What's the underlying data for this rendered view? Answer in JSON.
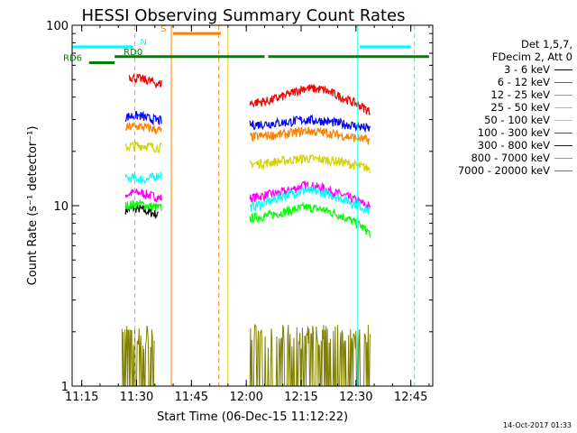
{
  "chart_data": {
    "type": "line",
    "title": "HESSI Observing Summary Count Rates",
    "xlabel": "Start Time (06-Dec-15 11:12:22)",
    "ylabel": "Count Rate (s⁻¹ detector⁻¹)",
    "y_scale": "log",
    "ylim": [
      1,
      100
    ],
    "xlim": [
      "11:12:22",
      "12:51:00"
    ],
    "x_ticks": [
      "11:15",
      "11:30",
      "11:45",
      "12:00",
      "12:15",
      "12:30",
      "12:45"
    ],
    "y_ticks": [
      "1",
      "10",
      "100"
    ],
    "legend_position": "right",
    "legend_header": [
      "Det 1,5,7,",
      "FDecim 2, Att 0"
    ],
    "series": [
      {
        "name": "3 - 6 keV",
        "color": "#000000",
        "segments": [
          {
            "x": [
              "11:27",
              "11:29",
              "11:31",
              "11:33",
              "11:35",
              "11:36"
            ],
            "y": [
              9.5,
              9.7,
              9.6,
              9.3,
              9.0,
              8.8
            ]
          },
          {
            "x": [
              "12:01",
              "12:06",
              "12:11",
              "12:16",
              "12:21",
              "12:26",
              "12:31",
              "12:34"
            ],
            "y": [
              null,
              null,
              null,
              null,
              null,
              null,
              null,
              null
            ]
          }
        ]
      },
      {
        "name": "6 - 12 keV",
        "color": "#ff00ff",
        "segments": [
          {
            "x": [
              "11:27",
              "11:29",
              "11:31",
              "11:33",
              "11:35",
              "11:37"
            ],
            "y": [
              11.5,
              11.8,
              11.8,
              11.5,
              11.2,
              11
            ]
          },
          {
            "x": [
              "12:01",
              "12:06",
              "12:11",
              "12:16",
              "12:21",
              "12:26",
              "12:31",
              "12:34"
            ],
            "y": [
              11,
              11.5,
              12,
              13,
              12.5,
              11.5,
              10.5,
              9.8
            ]
          }
        ]
      },
      {
        "name": "12 - 25 keV",
        "color": "#00ff00",
        "segments": [
          {
            "x": [
              "11:27",
              "11:29",
              "11:31",
              "11:33",
              "11:35",
              "11:37"
            ],
            "y": [
              10,
              10.2,
              10.2,
              10,
              9.8,
              9.7
            ]
          },
          {
            "x": [
              "12:01",
              "12:06",
              "12:11",
              "12:16",
              "12:21",
              "12:26",
              "12:31",
              "12:34"
            ],
            "y": [
              8.5,
              8.8,
              9.3,
              9.8,
              9.5,
              8.8,
              7.8,
              7.0
            ]
          }
        ]
      },
      {
        "name": "25 - 50 keV",
        "color": "#00ffff",
        "segments": [
          {
            "x": [
              "11:27",
              "11:29",
              "11:31",
              "11:33",
              "11:35",
              "11:37"
            ],
            "y": [
              14,
              14.3,
              14,
              14,
              14.5,
              15
            ]
          },
          {
            "x": [
              "12:01",
              "12:06",
              "12:11",
              "12:16",
              "12:21",
              "12:26",
              "12:31",
              "12:34"
            ],
            "y": [
              9.8,
              10.5,
              11.5,
              12.2,
              11.8,
              11,
              10,
              9.3
            ]
          }
        ]
      },
      {
        "name": "50 - 100 keV",
        "color": "#d4d400",
        "segments": [
          {
            "x": [
              "11:27",
              "11:29",
              "11:31",
              "11:33",
              "11:35",
              "11:37"
            ],
            "y": [
              21,
              21.5,
              21.5,
              21.5,
              21,
              21
            ]
          },
          {
            "x": [
              "12:01",
              "12:06",
              "12:11",
              "12:16",
              "12:21",
              "12:26",
              "12:31",
              "12:34"
            ],
            "y": [
              17,
              17.3,
              17.8,
              18.3,
              18,
              17.5,
              16.5,
              16
            ]
          }
        ]
      },
      {
        "name": "100 - 300 keV",
        "color": "#ff0000",
        "segments": [
          {
            "x": [
              "11:28",
              "11:30",
              "11:32",
              "11:34",
              "11:36",
              "11:37"
            ],
            "y": [
              52,
              51,
              50,
              49,
              47,
              48
            ]
          },
          {
            "x": [
              "12:01",
              "12:06",
              "12:11",
              "12:16",
              "12:21",
              "12:26",
              "12:31",
              "12:34"
            ],
            "y": [
              37,
              38,
              41,
              45,
              44,
              40,
              36,
              33
            ]
          }
        ]
      },
      {
        "name": "300 - 800 keV",
        "color": "#0000ff",
        "segments": [
          {
            "x": [
              "11:27",
              "11:29",
              "11:31",
              "11:33",
              "11:35",
              "11:37"
            ],
            "y": [
              31,
              31.5,
              31.5,
              30.5,
              30,
              29.5
            ]
          },
          {
            "x": [
              "12:01",
              "12:06",
              "12:11",
              "12:16",
              "12:21",
              "12:26",
              "12:31",
              "12:34"
            ],
            "y": [
              28,
              28.5,
              29,
              30,
              29.5,
              28.5,
              27.5,
              26.5
            ]
          }
        ]
      },
      {
        "name": "800 - 7000 keV",
        "color": "#ff8000",
        "segments": [
          {
            "x": [
              "11:27",
              "11:29",
              "11:31",
              "11:33",
              "11:35",
              "11:37"
            ],
            "y": [
              27,
              27.5,
              27.5,
              27,
              26.5,
              26
            ]
          },
          {
            "x": [
              "12:01",
              "12:06",
              "12:11",
              "12:16",
              "12:21",
              "12:26",
              "12:31",
              "12:34"
            ],
            "y": [
              24,
              24.5,
              25,
              26,
              25.5,
              24.5,
              23.5,
              23
            ]
          }
        ]
      },
      {
        "name": "7000 - 20000 keV",
        "color": "#808000",
        "segments": [
          {
            "x": [
              "11:26",
              "11:28",
              "11:30",
              "11:32",
              "11:34",
              "11:35"
            ],
            "y": [
              2.3,
              2.3,
              2.3,
              2.3,
              2.3,
              2.3
            ]
          },
          {
            "x": [
              "12:01",
              "12:06",
              "12:11",
              "12:16",
              "12:21",
              "12:26",
              "12:31",
              "12:34"
            ],
            "y": [
              1.6,
              1.6,
              1.6,
              1.7,
              1.6,
              1.6,
              1.6,
              1.5
            ]
          }
        ]
      }
    ],
    "state_bars": [
      {
        "label": "N",
        "color": "#00ffff",
        "level": 76,
        "spans": [
          [
            "11:12:22",
            "11:29"
          ],
          [
            "12:31",
            "12:45"
          ]
        ]
      },
      {
        "label": "S",
        "color": "#ff8000",
        "level": 90,
        "spans": [
          [
            "11:40",
            "11:53"
          ]
        ]
      },
      {
        "label": "RD0",
        "color": "#008000",
        "level": 67,
        "spans": [
          [
            "11:24",
            "12:05"
          ],
          [
            "12:06",
            "12:50"
          ]
        ]
      },
      {
        "label": "RD6",
        "color": "#008000",
        "level": 62,
        "spans": [
          [
            "11:17",
            "11:24"
          ]
        ]
      }
    ],
    "vertical_lines": [
      {
        "x": "11:12:22",
        "color": "#00ffff",
        "style": "solid"
      },
      {
        "x": "11:29:30",
        "color": "#00ffff",
        "style": "dashed"
      },
      {
        "x": "11:39:30",
        "color": "#ff8000",
        "style": "solid"
      },
      {
        "x": "11:52:30",
        "color": "#ff8000",
        "style": "dashed"
      },
      {
        "x": "11:55",
        "color": "#d4d400",
        "style": "solid"
      },
      {
        "x": "12:30:30",
        "color": "#00ffff",
        "style": "solid"
      },
      {
        "x": "12:46",
        "color": "#00ffff",
        "style": "dashed"
      }
    ],
    "timestamp": "14-Oct-2017 01:33"
  }
}
